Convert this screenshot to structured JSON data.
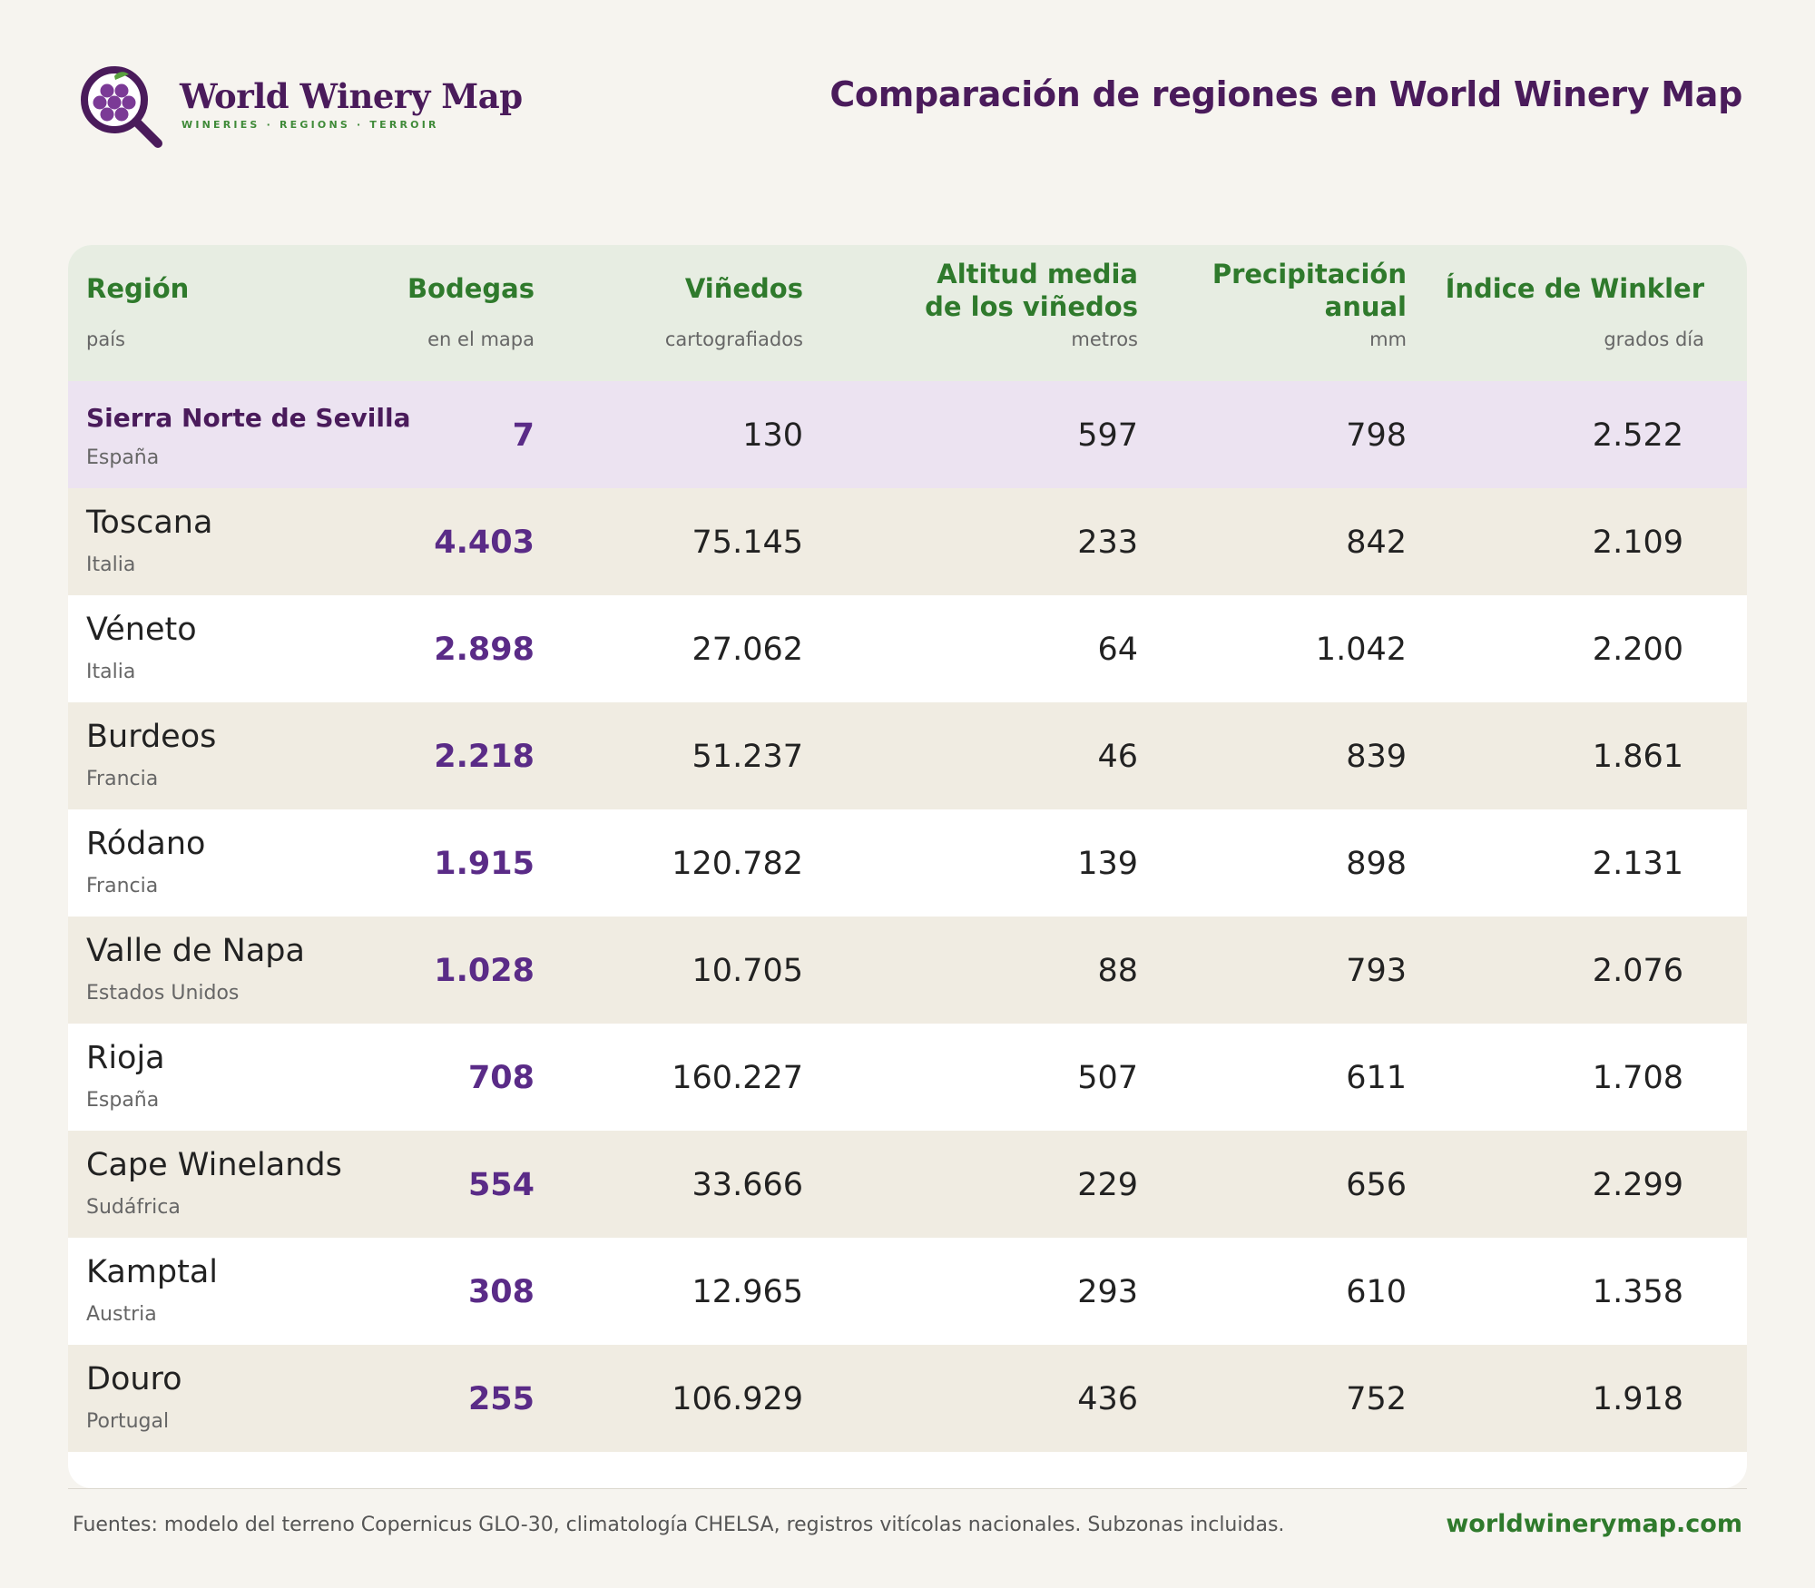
{
  "brand": {
    "name": "World Winery Map",
    "tagline": "WINERIES · REGIONS · TERROIR",
    "logo_icon": "magnifier-grapes-icon"
  },
  "title": "Comparación de regiones en World Winery Map",
  "colors": {
    "brand_purple": "#4a1b5b",
    "accent_green": "#2f7a2c",
    "wineries_purple": "#5a2b87",
    "header_bg": "#e7ede2",
    "highlight_bg": "#ece3f1",
    "alt_row_bg": "#f0ece2"
  },
  "table": {
    "columns": [
      {
        "title": "Región",
        "sub": "país"
      },
      {
        "title": "Bodegas",
        "sub": "en el mapa"
      },
      {
        "title": "Viñedos",
        "sub": "cartografiados"
      },
      {
        "title_line1": "Altitud media",
        "title_line2": "de los viñedos",
        "sub": "metros"
      },
      {
        "title_line1": "Precipitación",
        "title_line2": "anual",
        "sub": "mm"
      },
      {
        "title": "Índice de Winkler",
        "sub": "grados día"
      }
    ],
    "rows": [
      {
        "region": "Sierra Norte de Sevilla",
        "country": "España",
        "wineries": "7",
        "vineyards": "130",
        "altitude": "597",
        "precipitation": "798",
        "winkler": "2.522"
      },
      {
        "region": "Toscana",
        "country": "Italia",
        "wineries": "4.403",
        "vineyards": "75.145",
        "altitude": "233",
        "precipitation": "842",
        "winkler": "2.109"
      },
      {
        "region": "Véneto",
        "country": "Italia",
        "wineries": "2.898",
        "vineyards": "27.062",
        "altitude": "64",
        "precipitation": "1.042",
        "winkler": "2.200"
      },
      {
        "region": "Burdeos",
        "country": "Francia",
        "wineries": "2.218",
        "vineyards": "51.237",
        "altitude": "46",
        "precipitation": "839",
        "winkler": "1.861"
      },
      {
        "region": "Ródano",
        "country": "Francia",
        "wineries": "1.915",
        "vineyards": "120.782",
        "altitude": "139",
        "precipitation": "898",
        "winkler": "2.131"
      },
      {
        "region": "Valle de Napa",
        "country": "Estados Unidos",
        "wineries": "1.028",
        "vineyards": "10.705",
        "altitude": "88",
        "precipitation": "793",
        "winkler": "2.076"
      },
      {
        "region": "Rioja",
        "country": "España",
        "wineries": "708",
        "vineyards": "160.227",
        "altitude": "507",
        "precipitation": "611",
        "winkler": "1.708"
      },
      {
        "region": "Cape Winelands",
        "country": "Sudáfrica",
        "wineries": "554",
        "vineyards": "33.666",
        "altitude": "229",
        "precipitation": "656",
        "winkler": "2.299"
      },
      {
        "region": "Kamptal",
        "country": "Austria",
        "wineries": "308",
        "vineyards": "12.965",
        "altitude": "293",
        "precipitation": "610",
        "winkler": "1.358"
      },
      {
        "region": "Douro",
        "country": "Portugal",
        "wineries": "255",
        "vineyards": "106.929",
        "altitude": "436",
        "precipitation": "752",
        "winkler": "1.918"
      }
    ]
  },
  "footer": {
    "note": "Fuentes: modelo del terreno Copernicus GLO-30, climatología CHELSA, registros vitícolas nacionales. Subzonas incluidas.",
    "site": "worldwinerymap.com"
  }
}
